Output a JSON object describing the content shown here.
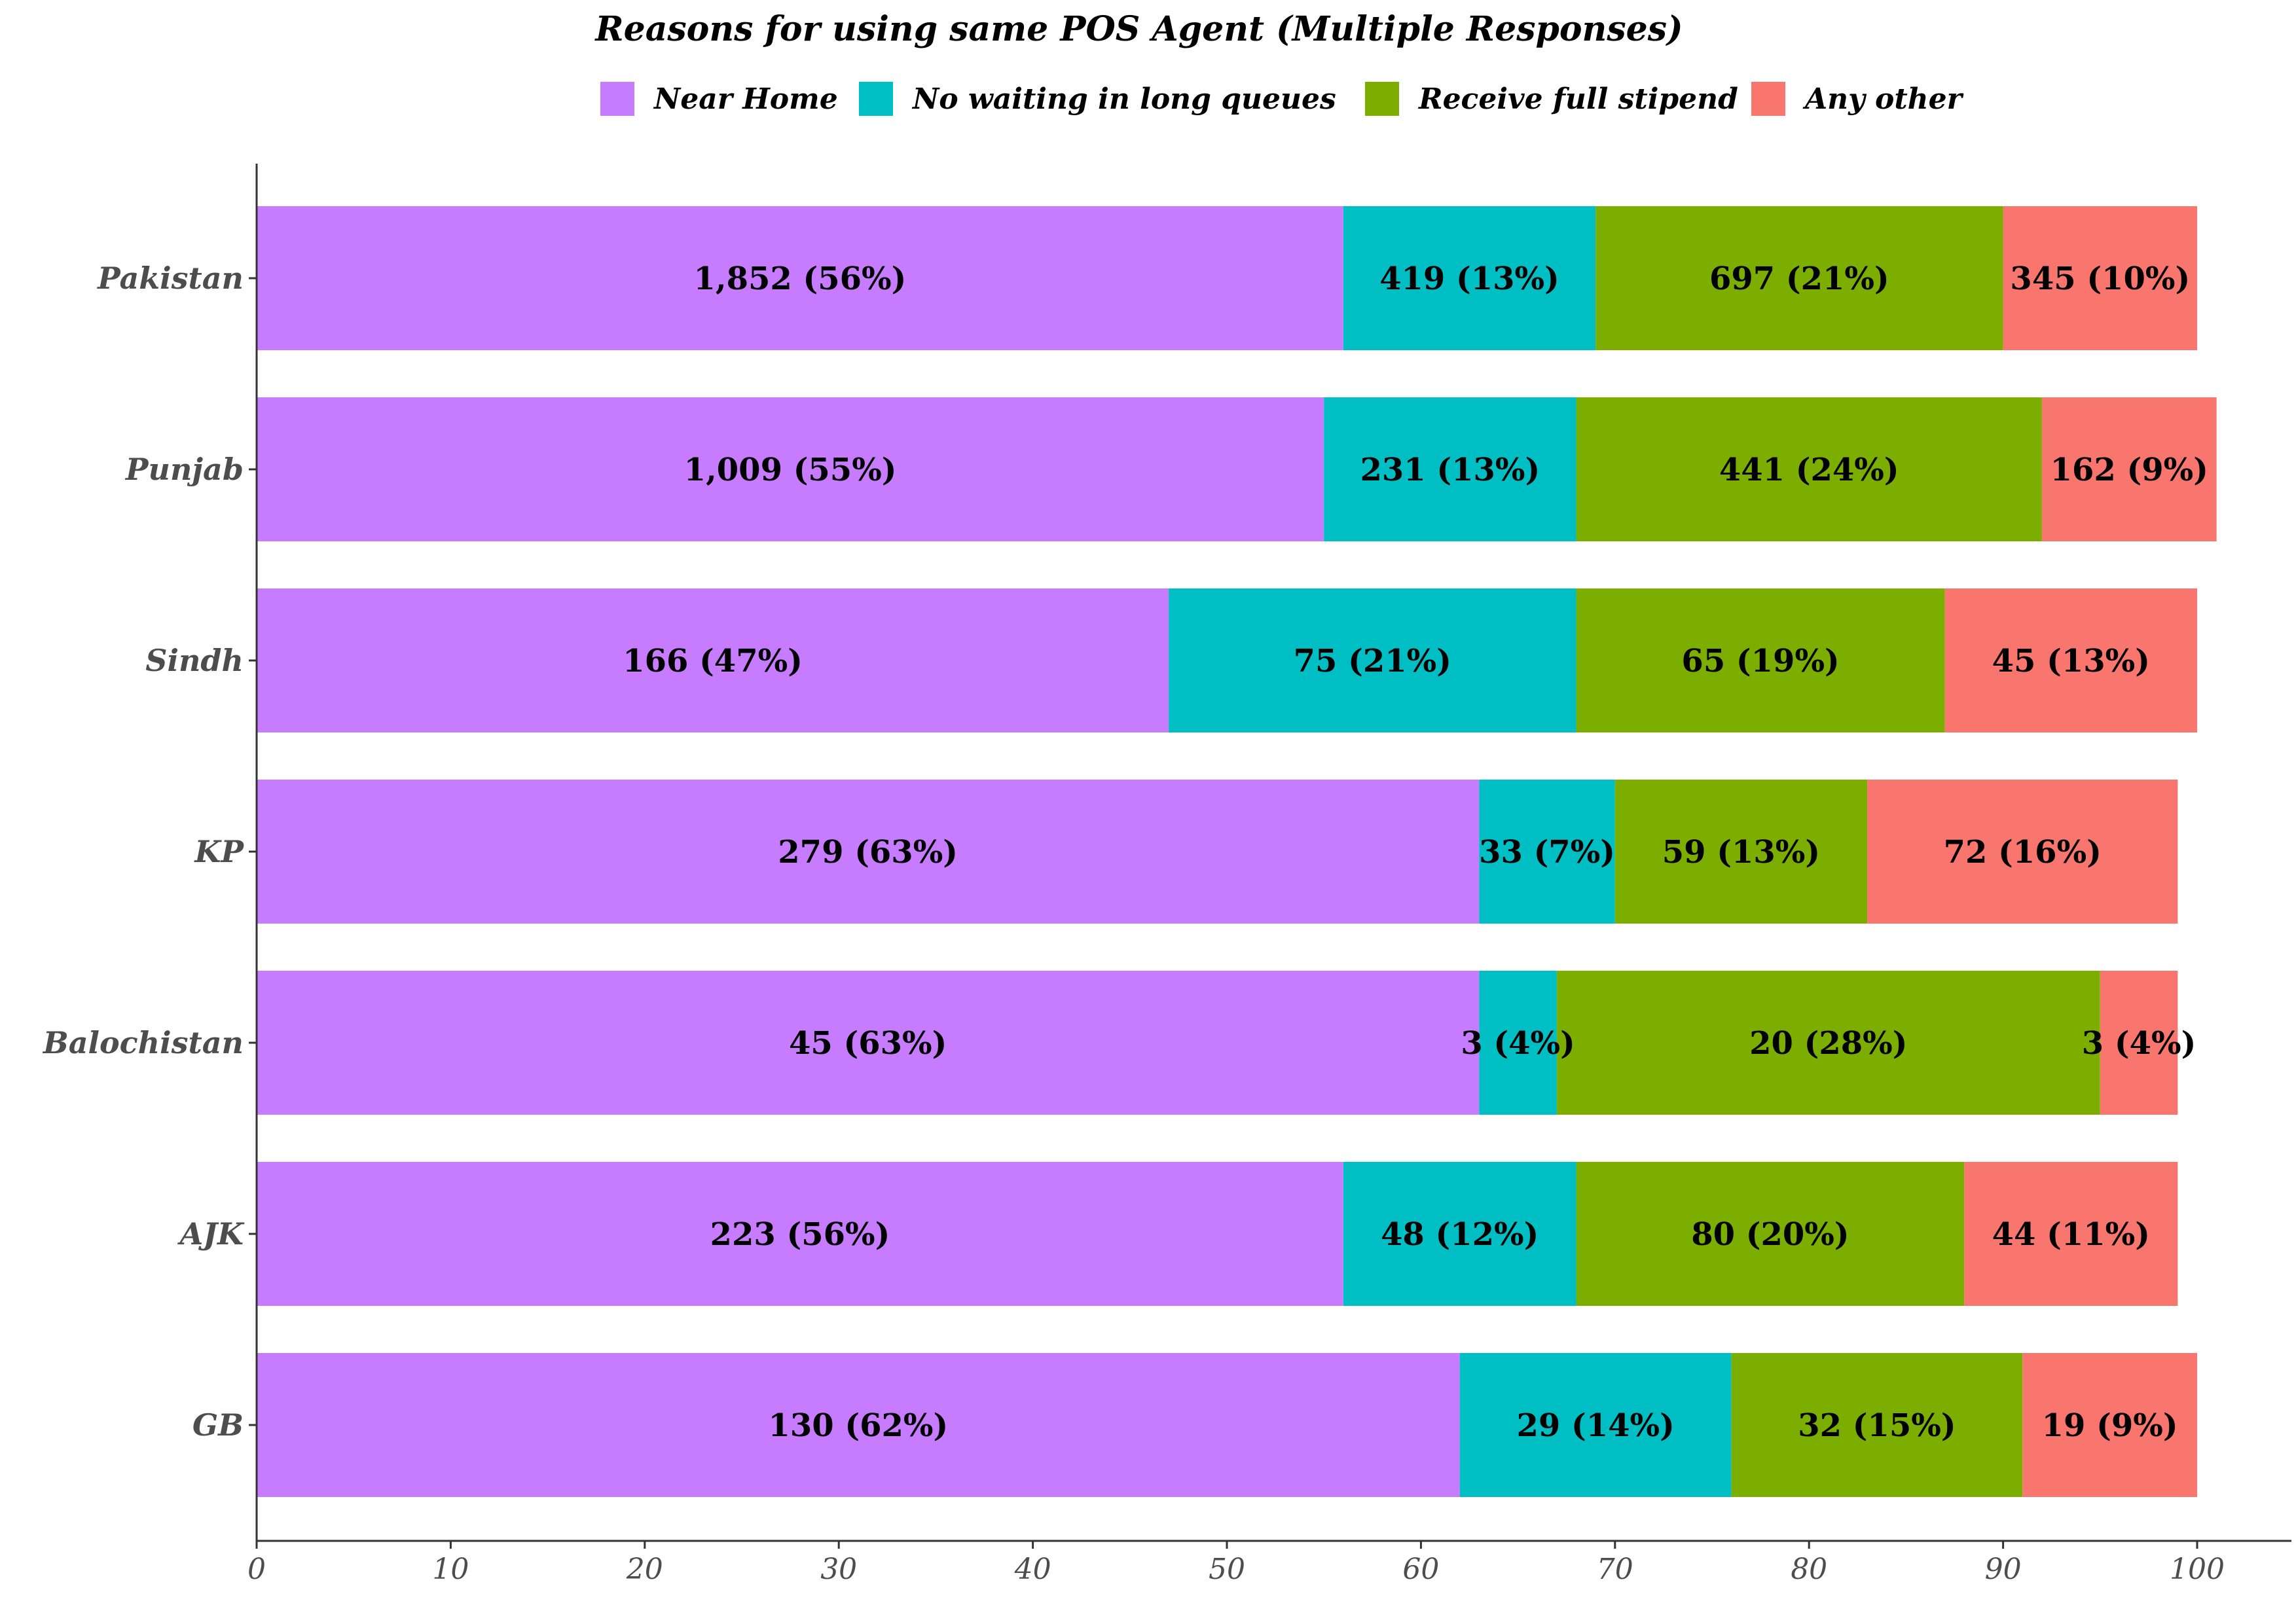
{
  "chart_data": {
    "type": "bar",
    "orientation": "horizontal",
    "stacked": true,
    "title": "Reasons for using same POS Agent (Multiple Responses)",
    "xlabel": "",
    "ylabel": "",
    "xlim": [
      0,
      100
    ],
    "x_ticks": [
      "0",
      "10",
      "20",
      "30",
      "40",
      "50",
      "60",
      "70",
      "80",
      "90",
      "100"
    ],
    "grid": false,
    "legend_position": "top",
    "categories": [
      "Pakistan",
      "Punjab",
      "Sindh",
      "KP",
      "Balochistan",
      "AJK",
      "GB"
    ],
    "series": [
      {
        "name": "Near Home",
        "color": "#C77CFF",
        "values": [
          56,
          55,
          47,
          63,
          63,
          56,
          62
        ],
        "labels": [
          "1,852 (56%)",
          "1,009 (55%)",
          "166 (47%)",
          "279 (63%)",
          "45 (63%)",
          "223 (56%)",
          "130 (62%)"
        ]
      },
      {
        "name": "No waiting in long queues",
        "color": "#00BFC4",
        "values": [
          13,
          13,
          21,
          7,
          4,
          12,
          14
        ],
        "labels": [
          "419 (13%)",
          "231 (13%)",
          "75 (21%)",
          "33 (7%)",
          "3 (4%)",
          "48 (12%)",
          "29 (14%)"
        ]
      },
      {
        "name": "Receive full stipend",
        "color": "#7CAE00",
        "values": [
          21,
          24,
          19,
          13,
          28,
          20,
          15
        ],
        "labels": [
          "697 (21%)",
          "441 (24%)",
          "65 (19%)",
          "59 (13%)",
          "20 (28%)",
          "80 (20%)",
          "32 (15%)"
        ]
      },
      {
        "name": "Any other",
        "color": "#F8766D",
        "values": [
          10,
          9,
          13,
          16,
          4,
          11,
          9
        ],
        "labels": [
          "345 (10%)",
          "162 (9%)",
          "45 (13%)",
          "72 (16%)",
          "3 (4%)",
          "44 (11%)",
          "19 (9%)"
        ]
      }
    ]
  }
}
